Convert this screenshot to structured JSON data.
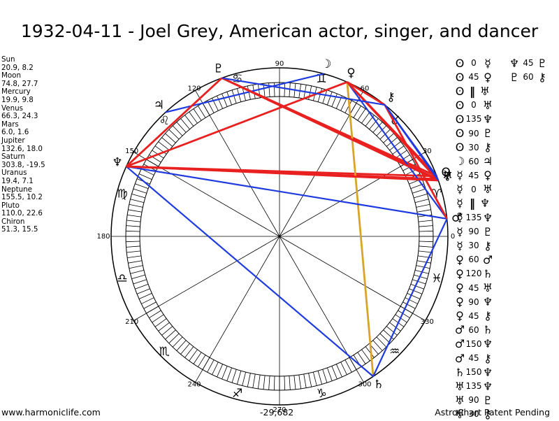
{
  "title": "1932-04-11 - Joel Grey, American actor, singer, and dancer",
  "planets": [
    {
      "key": "sun",
      "name": "Sun",
      "pos": "20.9, 8.2",
      "glyph": "ʘ",
      "lon": 20.9,
      "lat": 8.2
    },
    {
      "key": "moon",
      "name": "Moon",
      "pos": "74.8, 27.7",
      "glyph": "☽",
      "lon": 74.8,
      "lat": 27.7
    },
    {
      "key": "mercury",
      "name": "Mercury",
      "pos": "19.9, 9.8",
      "glyph": "☿",
      "lon": 19.9,
      "lat": 9.8
    },
    {
      "key": "venus",
      "name": "Venus",
      "pos": "66.3, 24.3",
      "glyph": "♀",
      "lon": 66.3,
      "lat": 24.3
    },
    {
      "key": "mars",
      "name": "Mars",
      "pos": "6.0, 1.6",
      "glyph": "♂",
      "lon": 6.0,
      "lat": 1.6
    },
    {
      "key": "jupiter",
      "name": "Jupiter",
      "pos": "132.6, 18.0",
      "glyph": "♃",
      "lon": 132.6,
      "lat": 18.0
    },
    {
      "key": "saturn",
      "name": "Saturn",
      "pos": "303.8, -19.5",
      "glyph": "♄",
      "lon": 303.8,
      "lat": -19.5
    },
    {
      "key": "uranus",
      "name": "Uranus",
      "pos": "19.4, 7.1",
      "glyph": "♅",
      "lon": 19.4,
      "lat": 7.1
    },
    {
      "key": "neptune",
      "name": "Neptune",
      "pos": "155.5, 10.2",
      "glyph": "♆",
      "lon": 155.5,
      "lat": 10.2
    },
    {
      "key": "pluto",
      "name": "Pluto",
      "pos": "110.0, 22.6",
      "glyph": "♇",
      "lon": 110.0,
      "lat": 22.6
    },
    {
      "key": "chiron",
      "name": "Chiron",
      "pos": "51.3, 15.5",
      "glyph": "⚷",
      "lon": 51.3,
      "lat": 15.5
    }
  ],
  "signs": [
    {
      "glyph": "♈",
      "name": "aries",
      "lon": 15
    },
    {
      "glyph": "♉",
      "name": "taurus",
      "lon": 45
    },
    {
      "glyph": "♊",
      "name": "gemini",
      "lon": 75
    },
    {
      "glyph": "♋",
      "name": "cancer",
      "lon": 105
    },
    {
      "glyph": "♌",
      "name": "leo",
      "lon": 135
    },
    {
      "glyph": "♍",
      "name": "virgo",
      "lon": 165
    },
    {
      "glyph": "♎",
      "name": "libra",
      "lon": 195
    },
    {
      "glyph": "♏",
      "name": "scorpio",
      "lon": 225
    },
    {
      "glyph": "♐",
      "name": "sagittarius",
      "lon": 255
    },
    {
      "glyph": "♑",
      "name": "capricorn",
      "lon": 285
    },
    {
      "glyph": "♒",
      "name": "aquarius",
      "lon": 315
    },
    {
      "glyph": "♓",
      "name": "pisces",
      "lon": 345
    }
  ],
  "degree_labels": [
    "0",
    "30",
    "60",
    "90",
    "120",
    "150",
    "180",
    "210",
    "240",
    "270",
    "300",
    "330"
  ],
  "aspects_col1": [
    {
      "p1": "ʘ",
      "ang": "0",
      "p2": "☿"
    },
    {
      "p1": "ʘ",
      "ang": "45",
      "p2": "♀"
    },
    {
      "p1": "ʘ",
      "ang": "‖",
      "p2": "♅"
    },
    {
      "p1": "ʘ",
      "ang": "0",
      "p2": "♅"
    },
    {
      "p1": "ʘ",
      "ang": "135",
      "p2": "♆"
    },
    {
      "p1": "ʘ",
      "ang": "90",
      "p2": "♇"
    },
    {
      "p1": "ʘ",
      "ang": "30",
      "p2": "⚷"
    },
    {
      "p1": "☽",
      "ang": "60",
      "p2": "♃"
    },
    {
      "p1": "☿",
      "ang": "45",
      "p2": "♀"
    },
    {
      "p1": "☿",
      "ang": "0",
      "p2": "♅"
    },
    {
      "p1": "☿",
      "ang": "‖",
      "p2": "♆"
    },
    {
      "p1": "☿",
      "ang": "135",
      "p2": "♆"
    },
    {
      "p1": "☿",
      "ang": "90",
      "p2": "♇"
    },
    {
      "p1": "☿",
      "ang": "30",
      "p2": "⚷"
    },
    {
      "p1": "♀",
      "ang": "60",
      "p2": "♂"
    },
    {
      "p1": "♀",
      "ang": "120",
      "p2": "♄"
    },
    {
      "p1": "♀",
      "ang": "45",
      "p2": "♅"
    },
    {
      "p1": "♀",
      "ang": "90",
      "p2": "♆"
    },
    {
      "p1": "♀",
      "ang": "45",
      "p2": "⚷"
    },
    {
      "p1": "♂",
      "ang": "60",
      "p2": "♄"
    },
    {
      "p1": "♂",
      "ang": "150",
      "p2": "♆"
    },
    {
      "p1": "♂",
      "ang": "45",
      "p2": "⚷"
    },
    {
      "p1": "♄",
      "ang": "150",
      "p2": "♆"
    },
    {
      "p1": "♅",
      "ang": "135",
      "p2": "♆"
    },
    {
      "p1": "♅",
      "ang": "90",
      "p2": "♇"
    },
    {
      "p1": "♅",
      "ang": "30",
      "p2": "⚷"
    }
  ],
  "aspects_col2": [
    {
      "p1": "♆",
      "ang": "45",
      "p2": "♇"
    },
    {
      "p1": "♇",
      "ang": "60",
      "p2": "⚷"
    }
  ],
  "aspect_lines": [
    {
      "a": "sun",
      "b": "venus",
      "color": "#e82020"
    },
    {
      "a": "sun",
      "b": "neptune",
      "color": "#e82020"
    },
    {
      "a": "sun",
      "b": "pluto",
      "color": "#e82020"
    },
    {
      "a": "sun",
      "b": "chiron",
      "color": "#1f3be0"
    },
    {
      "a": "moon",
      "b": "jupiter",
      "color": "#1f3be0"
    },
    {
      "a": "mercury",
      "b": "venus",
      "color": "#e82020"
    },
    {
      "a": "mercury",
      "b": "neptune",
      "color": "#e82020"
    },
    {
      "a": "mercury",
      "b": "pluto",
      "color": "#e82020"
    },
    {
      "a": "mercury",
      "b": "chiron",
      "color": "#1f3be0"
    },
    {
      "a": "venus",
      "b": "mars",
      "color": "#1f3be0"
    },
    {
      "a": "venus",
      "b": "saturn",
      "color": "#d8a528"
    },
    {
      "a": "venus",
      "b": "uranus",
      "color": "#e82020"
    },
    {
      "a": "venus",
      "b": "neptune",
      "color": "#e82020"
    },
    {
      "a": "venus",
      "b": "chiron",
      "color": "#e82020"
    },
    {
      "a": "mars",
      "b": "saturn",
      "color": "#1f3be0"
    },
    {
      "a": "mars",
      "b": "neptune",
      "color": "#1f3be0"
    },
    {
      "a": "mars",
      "b": "chiron",
      "color": "#e82020"
    },
    {
      "a": "saturn",
      "b": "neptune",
      "color": "#1f3be0"
    },
    {
      "a": "uranus",
      "b": "neptune",
      "color": "#e82020"
    },
    {
      "a": "uranus",
      "b": "pluto",
      "color": "#e82020"
    },
    {
      "a": "uranus",
      "b": "chiron",
      "color": "#1f3be0"
    },
    {
      "a": "neptune",
      "b": "pluto",
      "color": "#e82020"
    },
    {
      "a": "pluto",
      "b": "chiron",
      "color": "#1f3be0"
    }
  ],
  "footer": {
    "left": "www.harmoniclife.com",
    "center": "-29,682",
    "right": "AstroChart Patent Pending"
  }
}
